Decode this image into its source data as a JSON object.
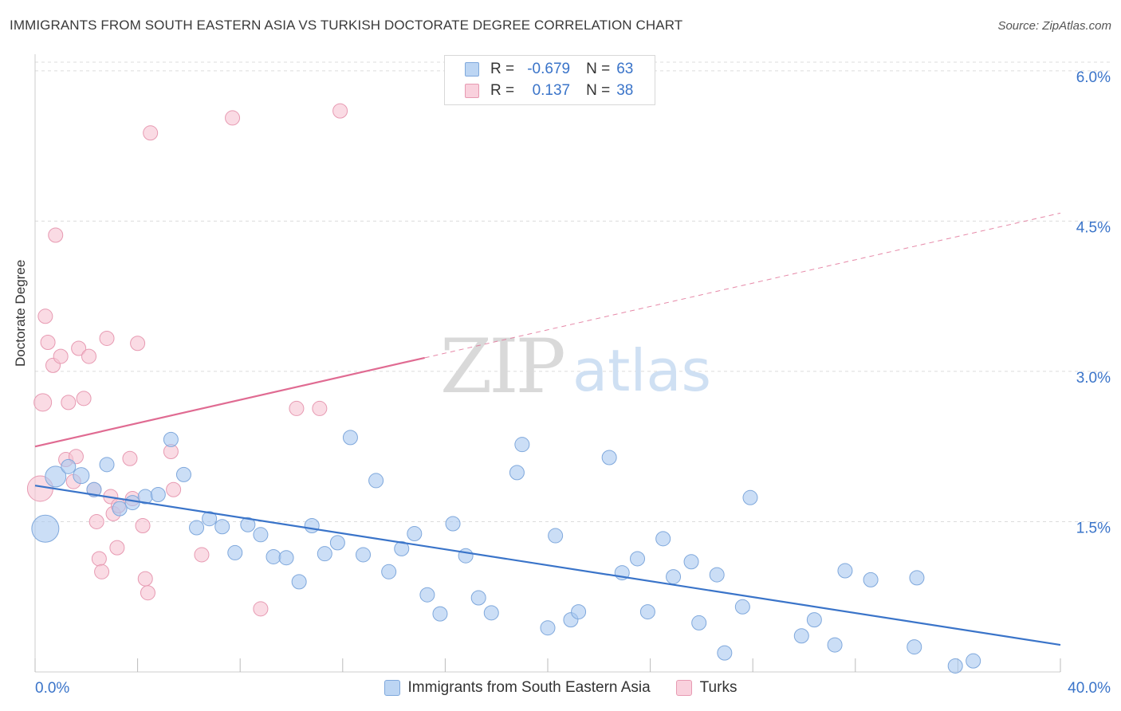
{
  "title": "IMMIGRANTS FROM SOUTH EASTERN ASIA VS TURKISH DOCTORATE DEGREE CORRELATION CHART",
  "source": "Source: ZipAtlas.com",
  "watermark": {
    "zip": "ZIP",
    "atlas": "atlas"
  },
  "legend_top": {
    "rows": [
      {
        "r_label": "R =",
        "r_value": "-0.679",
        "n_label": "N =",
        "n_value": "63"
      },
      {
        "r_label": "R =",
        "r_value": "0.137",
        "n_label": "N =",
        "n_value": "38"
      }
    ]
  },
  "colors": {
    "blue_fill": "#a9c8f0",
    "blue_stroke": "#7fa8dc",
    "blue_line": "#3a74c9",
    "pink_fill": "#f6c3d2",
    "pink_stroke": "#e79ab2",
    "pink_line": "#e06b92",
    "axis_text": "#3a74c9",
    "grid": "#dcdcdc"
  },
  "chart_data": {
    "type": "scatter",
    "title": "IMMIGRANTS FROM SOUTH EASTERN ASIA VS TURKISH DOCTORATE DEGREE CORRELATION CHART",
    "xlabel": "",
    "ylabel": "Doctorate Degree",
    "xlim": [
      0,
      40
    ],
    "ylim": [
      0,
      6.15
    ],
    "x_tick_labels": [
      "0.0%",
      "40.0%"
    ],
    "y_ticks": [
      1.5,
      3.0,
      4.5,
      6.0
    ],
    "y_tick_labels": [
      "1.5%",
      "3.0%",
      "4.5%",
      "6.0%"
    ],
    "grid": true,
    "legend_position": "bottom",
    "series": [
      {
        "name": "Immigrants from South Eastern Asia",
        "color": "#a9c8f0",
        "trend": {
          "x": [
            0,
            40
          ],
          "y": [
            1.86,
            0.27
          ],
          "dashed_x": null
        },
        "points": [
          {
            "x": 0.4,
            "y": 1.43,
            "s": 17
          },
          {
            "x": 0.8,
            "y": 1.95,
            "s": 13
          },
          {
            "x": 1.3,
            "y": 2.05,
            "s": 9
          },
          {
            "x": 1.8,
            "y": 1.96,
            "s": 10
          },
          {
            "x": 2.3,
            "y": 1.82,
            "s": 9
          },
          {
            "x": 2.8,
            "y": 2.07,
            "s": 9
          },
          {
            "x": 3.3,
            "y": 1.63,
            "s": 9
          },
          {
            "x": 3.8,
            "y": 1.69,
            "s": 9
          },
          {
            "x": 4.3,
            "y": 1.75,
            "s": 9
          },
          {
            "x": 4.8,
            "y": 1.77,
            "s": 9
          },
          {
            "x": 5.3,
            "y": 2.32,
            "s": 9
          },
          {
            "x": 5.8,
            "y": 1.97,
            "s": 9
          },
          {
            "x": 6.3,
            "y": 1.44,
            "s": 9
          },
          {
            "x": 6.8,
            "y": 1.53,
            "s": 9
          },
          {
            "x": 7.3,
            "y": 1.45,
            "s": 9
          },
          {
            "x": 7.8,
            "y": 1.19,
            "s": 9
          },
          {
            "x": 8.3,
            "y": 1.47,
            "s": 9
          },
          {
            "x": 8.8,
            "y": 1.37,
            "s": 9
          },
          {
            "x": 9.3,
            "y": 1.15,
            "s": 9
          },
          {
            "x": 9.8,
            "y": 1.14,
            "s": 9
          },
          {
            "x": 10.3,
            "y": 0.9,
            "s": 9
          },
          {
            "x": 10.8,
            "y": 1.46,
            "s": 9
          },
          {
            "x": 11.3,
            "y": 1.18,
            "s": 9
          },
          {
            "x": 11.8,
            "y": 1.29,
            "s": 9
          },
          {
            "x": 12.3,
            "y": 2.34,
            "s": 9
          },
          {
            "x": 12.8,
            "y": 1.17,
            "s": 9
          },
          {
            "x": 13.3,
            "y": 1.91,
            "s": 9
          },
          {
            "x": 13.8,
            "y": 1.0,
            "s": 9
          },
          {
            "x": 14.3,
            "y": 1.23,
            "s": 9
          },
          {
            "x": 14.8,
            "y": 1.38,
            "s": 9
          },
          {
            "x": 15.3,
            "y": 0.77,
            "s": 9
          },
          {
            "x": 15.8,
            "y": 0.58,
            "s": 9
          },
          {
            "x": 16.3,
            "y": 1.48,
            "s": 9
          },
          {
            "x": 16.8,
            "y": 1.16,
            "s": 9
          },
          {
            "x": 17.3,
            "y": 0.74,
            "s": 9
          },
          {
            "x": 17.8,
            "y": 0.59,
            "s": 9
          },
          {
            "x": 18.8,
            "y": 1.99,
            "s": 9
          },
          {
            "x": 19.0,
            "y": 2.27,
            "s": 9
          },
          {
            "x": 20.0,
            "y": 0.44,
            "s": 9
          },
          {
            "x": 20.3,
            "y": 1.36,
            "s": 9
          },
          {
            "x": 20.9,
            "y": 0.52,
            "s": 9
          },
          {
            "x": 21.2,
            "y": 0.6,
            "s": 9
          },
          {
            "x": 22.4,
            "y": 2.14,
            "s": 9
          },
          {
            "x": 22.9,
            "y": 0.99,
            "s": 9
          },
          {
            "x": 23.5,
            "y": 1.13,
            "s": 9
          },
          {
            "x": 23.9,
            "y": 0.6,
            "s": 9
          },
          {
            "x": 24.5,
            "y": 1.33,
            "s": 9
          },
          {
            "x": 24.9,
            "y": 0.95,
            "s": 9
          },
          {
            "x": 25.6,
            "y": 1.1,
            "s": 9
          },
          {
            "x": 25.9,
            "y": 0.49,
            "s": 9
          },
          {
            "x": 26.6,
            "y": 0.97,
            "s": 9
          },
          {
            "x": 26.9,
            "y": 0.19,
            "s": 9
          },
          {
            "x": 27.6,
            "y": 0.65,
            "s": 9
          },
          {
            "x": 27.9,
            "y": 1.74,
            "s": 9
          },
          {
            "x": 29.9,
            "y": 0.36,
            "s": 9
          },
          {
            "x": 30.4,
            "y": 0.52,
            "s": 9
          },
          {
            "x": 31.2,
            "y": 0.27,
            "s": 9
          },
          {
            "x": 31.6,
            "y": 1.01,
            "s": 9
          },
          {
            "x": 32.6,
            "y": 0.92,
            "s": 9
          },
          {
            "x": 34.3,
            "y": 0.25,
            "s": 9
          },
          {
            "x": 34.4,
            "y": 0.94,
            "s": 9
          },
          {
            "x": 35.9,
            "y": 0.06,
            "s": 9
          },
          {
            "x": 36.6,
            "y": 0.11,
            "s": 9
          }
        ]
      },
      {
        "name": "Turks",
        "color": "#f6c3d2",
        "trend": {
          "x": [
            0,
            40
          ],
          "y": [
            2.25,
            4.58
          ],
          "dashed_x": 15.2
        },
        "points": [
          {
            "x": 0.2,
            "y": 1.83,
            "s": 16
          },
          {
            "x": 0.3,
            "y": 2.69,
            "s": 11
          },
          {
            "x": 0.4,
            "y": 3.55,
            "s": 9
          },
          {
            "x": 0.5,
            "y": 3.29,
            "s": 9
          },
          {
            "x": 0.7,
            "y": 3.06,
            "s": 9
          },
          {
            "x": 0.8,
            "y": 4.36,
            "s": 9
          },
          {
            "x": 1.0,
            "y": 3.15,
            "s": 9
          },
          {
            "x": 1.2,
            "y": 2.12,
            "s": 9
          },
          {
            "x": 1.3,
            "y": 2.69,
            "s": 9
          },
          {
            "x": 1.5,
            "y": 1.9,
            "s": 9
          },
          {
            "x": 1.6,
            "y": 2.15,
            "s": 9
          },
          {
            "x": 1.7,
            "y": 3.23,
            "s": 9
          },
          {
            "x": 1.9,
            "y": 2.73,
            "s": 9
          },
          {
            "x": 2.1,
            "y": 3.15,
            "s": 9
          },
          {
            "x": 2.3,
            "y": 1.82,
            "s": 9
          },
          {
            "x": 2.4,
            "y": 1.5,
            "s": 9
          },
          {
            "x": 2.5,
            "y": 1.13,
            "s": 9
          },
          {
            "x": 2.6,
            "y": 1.0,
            "s": 9
          },
          {
            "x": 2.8,
            "y": 3.33,
            "s": 9
          },
          {
            "x": 2.95,
            "y": 1.75,
            "s": 9
          },
          {
            "x": 3.05,
            "y": 1.58,
            "s": 9
          },
          {
            "x": 3.2,
            "y": 1.24,
            "s": 9
          },
          {
            "x": 3.25,
            "y": 1.66,
            "s": 9
          },
          {
            "x": 3.7,
            "y": 2.13,
            "s": 9
          },
          {
            "x": 3.8,
            "y": 1.73,
            "s": 9
          },
          {
            "x": 4.0,
            "y": 3.28,
            "s": 9
          },
          {
            "x": 4.2,
            "y": 1.46,
            "s": 9
          },
          {
            "x": 4.3,
            "y": 0.93,
            "s": 9
          },
          {
            "x": 4.4,
            "y": 0.79,
            "s": 9
          },
          {
            "x": 4.5,
            "y": 5.38,
            "s": 9
          },
          {
            "x": 5.3,
            "y": 2.2,
            "s": 9
          },
          {
            "x": 5.4,
            "y": 1.82,
            "s": 9
          },
          {
            "x": 6.5,
            "y": 1.17,
            "s": 9
          },
          {
            "x": 7.7,
            "y": 5.53,
            "s": 9
          },
          {
            "x": 8.8,
            "y": 0.63,
            "s": 9
          },
          {
            "x": 10.2,
            "y": 2.63,
            "s": 9
          },
          {
            "x": 11.1,
            "y": 2.63,
            "s": 9
          },
          {
            "x": 11.9,
            "y": 5.6,
            "s": 9
          }
        ]
      }
    ]
  },
  "legend_bottom": [
    {
      "label": "Immigrants from South Eastern Asia"
    },
    {
      "label": "Turks"
    }
  ]
}
